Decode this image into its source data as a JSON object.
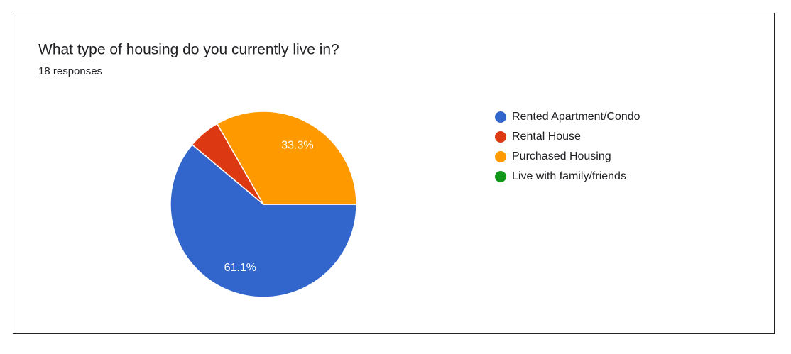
{
  "chart_data": {
    "type": "pie",
    "title": "What type of housing do you currently live in?",
    "subtitle": "18 responses",
    "categories": [
      "Rented Apartment/Condo",
      "Rental House",
      "Purchased Housing",
      "Live with family/friends"
    ],
    "values": [
      61.1,
      5.6,
      33.3,
      0
    ],
    "value_labels": [
      "61.1%",
      null,
      "33.3%",
      null
    ],
    "colors": [
      "#3366cc",
      "#dc3912",
      "#ff9900",
      "#109618"
    ],
    "legend": "right"
  }
}
